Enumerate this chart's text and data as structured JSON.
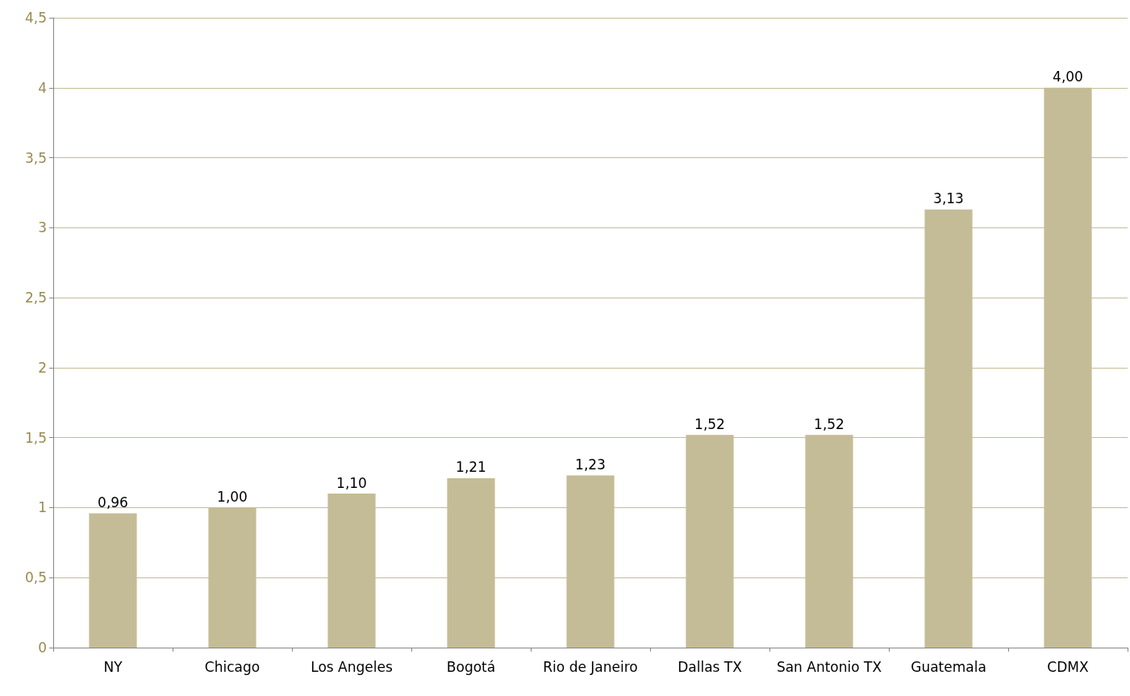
{
  "chart_data": {
    "type": "bar",
    "categories": [
      "NY",
      "Chicago",
      "Los Angeles",
      "Bogotá",
      "Rio de Janeiro",
      "Dallas TX",
      "San Antonio TX",
      "Guatemala",
      "CDMX"
    ],
    "values": [
      0.96,
      1.0,
      1.1,
      1.21,
      1.23,
      1.52,
      1.52,
      3.13,
      4.0
    ],
    "value_labels": [
      "0,96",
      "1,00",
      "1,10",
      "1,21",
      "1,23",
      "1,52",
      "1,52",
      "3,13",
      "4,00"
    ],
    "color": "#c4bc96",
    "ylim": [
      0,
      4.5
    ],
    "yticks": [
      0,
      {
        "value": 0.5,
        "label": "0,5"
      },
      1,
      {
        "value": 1.5,
        "label": "1,5"
      },
      2,
      {
        "value": 2.5,
        "label": "2,5"
      },
      3,
      {
        "value": 3.5,
        "label": "3,5"
      },
      4,
      {
        "value": 4.5,
        "label": "4,5"
      }
    ],
    "grid": "y"
  }
}
